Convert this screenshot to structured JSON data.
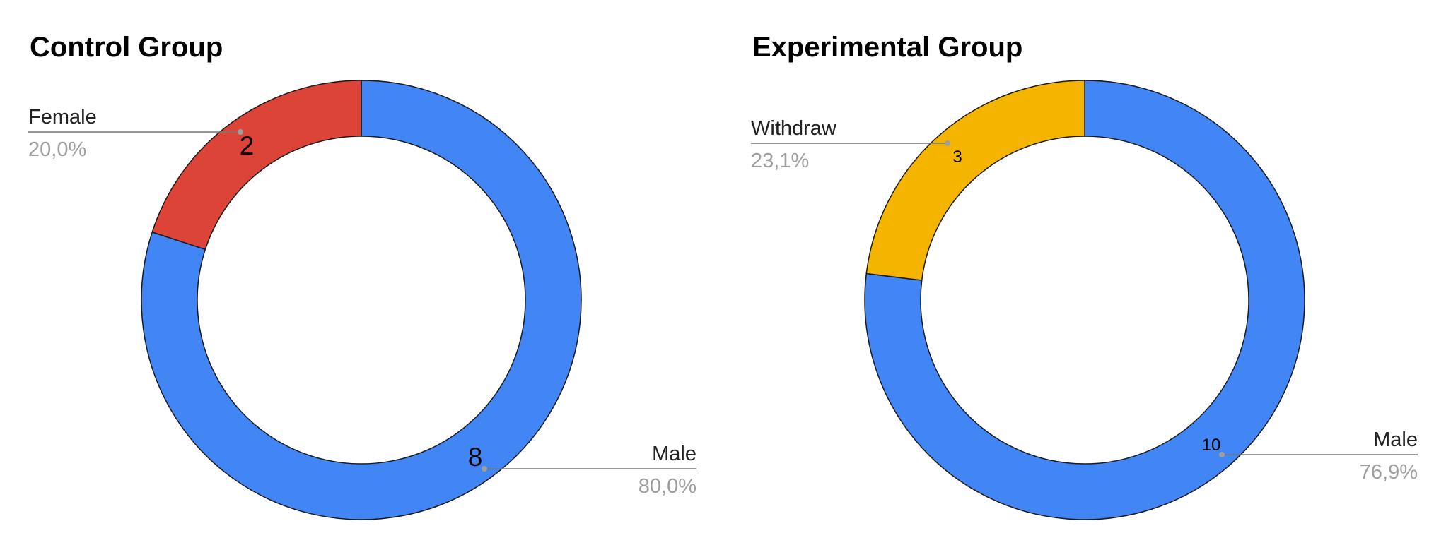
{
  "chart_data": [
    {
      "type": "pie",
      "donut": true,
      "title": "Control Group",
      "categories": [
        "Male",
        "Female"
      ],
      "values": [
        8,
        2
      ],
      "percent_labels": [
        "80,0%",
        "20,0%"
      ],
      "value_labels": [
        "8",
        "2"
      ],
      "colors": [
        "#4285f4",
        "#db4437"
      ]
    },
    {
      "type": "pie",
      "donut": true,
      "title": "Experimental Group",
      "categories": [
        "Male",
        "Withdraw"
      ],
      "values": [
        10,
        3
      ],
      "percent_labels": [
        "76,9%",
        "23,1%"
      ],
      "value_labels": [
        "10",
        "3"
      ],
      "colors": [
        "#4285f4",
        "#f4b400"
      ]
    }
  ]
}
